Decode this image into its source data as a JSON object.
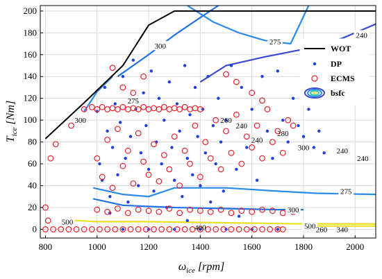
{
  "chart_data": {
    "type": "scatter",
    "xlim": [
      780,
      2080
    ],
    "ylim": [
      -8,
      205
    ],
    "x_ticks": [
      800,
      1000,
      1200,
      1400,
      1600,
      1800,
      2000
    ],
    "y_ticks": [
      0,
      20,
      40,
      60,
      80,
      100,
      120,
      140,
      160,
      180,
      200
    ],
    "xlabel_main": "ω",
    "xlabel_sub": "ice",
    "xlabel_unit": " [rpm]",
    "ylabel_main": "T",
    "ylabel_sub": "ice",
    "ylabel_unit": " [Nm]",
    "grid": true,
    "legend_position": "upper-right",
    "legend": [
      {
        "name": "WOT",
        "style": "line",
        "color": "#000000"
      },
      {
        "name": "DP",
        "style": "dot",
        "color": "#1f3fe0"
      },
      {
        "name": "ECMS",
        "style": "circle",
        "color": "#e8202a"
      },
      {
        "name": "bsfc",
        "style": "contour",
        "color": "#3a4ad0"
      }
    ],
    "series": [
      {
        "name": "WOT",
        "type": "line",
        "color": "#000000",
        "points": [
          [
            800,
            83
          ],
          [
            950,
            116
          ],
          [
            1100,
            150
          ],
          [
            1200,
            187
          ],
          [
            1300,
            200
          ],
          [
            2080,
            200
          ]
        ]
      },
      {
        "name": "DP",
        "type": "scatter",
        "color": "#1f3fe0",
        "points": [
          [
            1000,
            108
          ],
          [
            1010,
            60
          ],
          [
            1020,
            45
          ],
          [
            1030,
            130
          ],
          [
            1040,
            90
          ],
          [
            1050,
            30
          ],
          [
            1060,
            75
          ],
          [
            1070,
            115
          ],
          [
            1080,
            50
          ],
          [
            1090,
            98
          ],
          [
            1100,
            140
          ],
          [
            1110,
            65
          ],
          [
            1120,
            25
          ],
          [
            1130,
            85
          ],
          [
            1140,
            155
          ],
          [
            1150,
            110
          ],
          [
            1160,
            40
          ],
          [
            1170,
            70
          ],
          [
            1180,
            125
          ],
          [
            1190,
            95
          ],
          [
            1200,
            55
          ],
          [
            1210,
            145
          ],
          [
            1220,
            35
          ],
          [
            1230,
            80
          ],
          [
            1240,
            120
          ],
          [
            1250,
            60
          ],
          [
            1260,
            100
          ],
          [
            1270,
            20
          ],
          [
            1280,
            135
          ],
          [
            1290,
            75
          ],
          [
            1300,
            45
          ],
          [
            1310,
            115
          ],
          [
            1320,
            90
          ],
          [
            1330,
            30
          ],
          [
            1340,
            150
          ],
          [
            1350,
            65
          ],
          [
            1360,
            105
          ],
          [
            1370,
            50
          ],
          [
            1380,
            130
          ],
          [
            1390,
            85
          ],
          [
            1400,
            40
          ],
          [
            1410,
            110
          ],
          [
            1420,
            70
          ],
          [
            1430,
            140
          ],
          [
            1440,
            25
          ],
          [
            1450,
            95
          ],
          [
            1460,
            60
          ],
          [
            1470,
            120
          ],
          [
            1480,
            80
          ],
          [
            1490,
            35
          ],
          [
            1500,
            100
          ],
          [
            1520,
            150
          ],
          [
            1540,
            55
          ],
          [
            1560,
            130
          ],
          [
            1580,
            75
          ],
          [
            1600,
            110
          ],
          [
            1620,
            45
          ],
          [
            1640,
            140
          ],
          [
            1660,
            90
          ],
          [
            1680,
            65
          ],
          [
            1700,
            145
          ],
          [
            1720,
            100
          ],
          [
            1740,
            80
          ],
          [
            1760,
            120
          ],
          [
            1780,
            95
          ],
          [
            1800,
            85
          ],
          [
            1820,
            110
          ],
          [
            1840,
            75
          ],
          [
            1860,
            90
          ],
          [
            1880,
            70
          ],
          [
            1100,
            0
          ],
          [
            1200,
            0
          ],
          [
            1300,
            0
          ],
          [
            1400,
            0
          ],
          [
            1500,
            0
          ],
          [
            1600,
            0
          ],
          [
            1700,
            0
          ],
          [
            1050,
            15
          ],
          [
            1350,
            8
          ],
          [
            1550,
            12
          ]
        ]
      },
      {
        "name": "ECMS",
        "type": "scatter",
        "color": "#e8202a",
        "points": [
          [
            800,
            20
          ],
          [
            810,
            8
          ],
          [
            820,
            65
          ],
          [
            840,
            78
          ],
          [
            900,
            95
          ],
          [
            950,
            110
          ],
          [
            980,
            112
          ],
          [
            1000,
            110
          ],
          [
            1020,
            112
          ],
          [
            1040,
            110
          ],
          [
            1060,
            111
          ],
          [
            1080,
            110
          ],
          [
            1100,
            112
          ],
          [
            1120,
            110
          ],
          [
            1140,
            111
          ],
          [
            1160,
            110
          ],
          [
            1180,
            112
          ],
          [
            1200,
            110
          ],
          [
            1220,
            111
          ],
          [
            1240,
            110
          ],
          [
            1260,
            112
          ],
          [
            1280,
            110
          ],
          [
            1300,
            111
          ],
          [
            1320,
            110
          ],
          [
            1340,
            112
          ],
          [
            1360,
            110
          ],
          [
            1380,
            111
          ],
          [
            1400,
            110
          ],
          [
            1000,
            65
          ],
          [
            1020,
            48
          ],
          [
            1040,
            82
          ],
          [
            1060,
            38
          ],
          [
            1080,
            92
          ],
          [
            1100,
            58
          ],
          [
            1120,
            72
          ],
          [
            1140,
            42
          ],
          [
            1160,
            88
          ],
          [
            1180,
            62
          ],
          [
            1200,
            50
          ],
          [
            1220,
            78
          ],
          [
            1240,
            44
          ],
          [
            1260,
            68
          ],
          [
            1280,
            55
          ],
          [
            1300,
            85
          ],
          [
            1320,
            40
          ],
          [
            1340,
            72
          ],
          [
            1360,
            60
          ],
          [
            1380,
            95
          ],
          [
            1400,
            48
          ],
          [
            1420,
            80
          ],
          [
            1440,
            65
          ],
          [
            1460,
            100
          ],
          [
            1480,
            55
          ],
          [
            1500,
            90
          ],
          [
            1520,
            70
          ],
          [
            1540,
            105
          ],
          [
            1560,
            60
          ],
          [
            1580,
            85
          ],
          [
            1600,
            75
          ],
          [
            1620,
            95
          ],
          [
            1640,
            65
          ],
          [
            1660,
            110
          ],
          [
            1680,
            80
          ],
          [
            1700,
            90
          ],
          [
            1720,
            70
          ],
          [
            1740,
            100
          ],
          [
            1760,
            95
          ],
          [
            1000,
            18
          ],
          [
            1040,
            16
          ],
          [
            1080,
            19
          ],
          [
            1120,
            15
          ],
          [
            1160,
            18
          ],
          [
            1200,
            17
          ],
          [
            1240,
            16
          ],
          [
            1280,
            19
          ],
          [
            1320,
            15
          ],
          [
            1360,
            18
          ],
          [
            1400,
            17
          ],
          [
            1440,
            16
          ],
          [
            1480,
            18
          ],
          [
            1520,
            15
          ],
          [
            1560,
            17
          ],
          [
            1600,
            16
          ],
          [
            1640,
            18
          ],
          [
            1680,
            17
          ],
          [
            1720,
            15
          ],
          [
            1760,
            16
          ],
          [
            800,
            0
          ],
          [
            830,
            0
          ],
          [
            860,
            0
          ],
          [
            890,
            0
          ],
          [
            920,
            0
          ],
          [
            950,
            0
          ],
          [
            980,
            0
          ],
          [
            1010,
            0
          ],
          [
            1040,
            0
          ],
          [
            1070,
            0
          ],
          [
            1100,
            0
          ],
          [
            1130,
            0
          ],
          [
            1160,
            0
          ],
          [
            1190,
            0
          ],
          [
            1220,
            0
          ],
          [
            1250,
            0
          ],
          [
            1280,
            0
          ],
          [
            1310,
            0
          ],
          [
            1340,
            0
          ],
          [
            1370,
            0
          ],
          [
            1400,
            0
          ],
          [
            1430,
            0
          ],
          [
            1460,
            0
          ],
          [
            1490,
            0
          ],
          [
            1520,
            0
          ],
          [
            1550,
            0
          ],
          [
            1580,
            0
          ],
          [
            1610,
            0
          ],
          [
            1640,
            0
          ],
          [
            1670,
            0
          ],
          [
            1700,
            0
          ],
          [
            1720,
            0
          ],
          [
            1060,
            148
          ],
          [
            1100,
            130
          ],
          [
            1140,
            125
          ],
          [
            1180,
            140
          ],
          [
            1500,
            142
          ],
          [
            1540,
            135
          ],
          [
            1600,
            125
          ],
          [
            1640,
            118
          ]
        ]
      }
    ],
    "contours": [
      {
        "label": "300",
        "color": "#1f73e8",
        "points": [
          [
            1080,
            140
          ],
          [
            1200,
            160
          ],
          [
            1300,
            178
          ],
          [
            1400,
            194
          ],
          [
            1470,
            205
          ]
        ],
        "label_at": [
          1245,
          168
        ]
      },
      {
        "label": "275",
        "color": "#2b8be8",
        "points": [
          [
            1350,
            205
          ],
          [
            1450,
            190
          ],
          [
            1550,
            180
          ],
          [
            1650,
            173
          ],
          [
            1750,
            170
          ],
          [
            1820,
            205
          ]
        ],
        "label_at": [
          1690,
          172
        ]
      },
      {
        "label": "240",
        "color": "#3a4ad0",
        "points": [
          [
            1400,
            135
          ],
          [
            1500,
            150
          ],
          [
            1650,
            158
          ],
          [
            1800,
            165
          ],
          [
            1950,
            175
          ],
          [
            2080,
            188
          ]
        ],
        "label_at": [
          2025,
          178
        ]
      },
      {
        "label": "275",
        "color": "#2b8be8",
        "points": [
          [
            985,
            38
          ],
          [
            1100,
            32
          ],
          [
            1200,
            30
          ],
          [
            1300,
            38
          ],
          [
            1500,
            38
          ],
          [
            1700,
            35
          ],
          [
            1850,
            33
          ],
          [
            2080,
            32
          ]
        ],
        "label_at": [
          1965,
          35
        ]
      },
      {
        "label": "300",
        "color": "#1f73e8",
        "points": [
          [
            985,
            28
          ],
          [
            1100,
            22
          ],
          [
            1300,
            20
          ],
          [
            1500,
            19
          ],
          [
            1700,
            18
          ],
          [
            1800,
            18
          ]
        ],
        "label_at": [
          1760,
          18
        ]
      },
      {
        "label": "500",
        "color": "#e8e020",
        "points": [
          [
            870,
            5
          ],
          [
            920,
            8
          ],
          [
            1000,
            7
          ],
          [
            1200,
            7
          ],
          [
            1500,
            6
          ],
          [
            1800,
            5
          ],
          [
            2080,
            5
          ]
        ],
        "label_at": [
          885,
          7
        ]
      },
      {
        "label": "500",
        "color": "#e8e020",
        "points": [
          [
            1800,
            3
          ],
          [
            2080,
            3
          ]
        ],
        "label_at": [
          1825,
          3
        ]
      },
      {
        "label": "",
        "color": "#2b8be8",
        "points": [
          [
            950,
            108
          ],
          [
            1000,
            126
          ],
          [
            1060,
            140
          ]
        ],
        "label_at": null
      }
    ],
    "contour_extra_labels": [
      {
        "text": "275",
        "at": [
          1140,
          118
        ]
      },
      {
        "text": "300",
        "at": [
          935,
          100
        ]
      },
      {
        "text": "240",
        "at": [
          1560,
          95
        ]
      },
      {
        "text": "240",
        "at": [
          1620,
          82
        ]
      },
      {
        "text": "240",
        "at": [
          1950,
          72
        ]
      },
      {
        "text": "240",
        "at": [
          2030,
          65
        ]
      },
      {
        "text": "260",
        "at": [
          1500,
          100
        ]
      },
      {
        "text": "280",
        "at": [
          1720,
          88
        ]
      },
      {
        "text": "300",
        "at": [
          1800,
          75
        ]
      },
      {
        "text": "400",
        "at": [
          1400,
          2
        ]
      },
      {
        "text": "260",
        "at": [
          1870,
          0
        ]
      },
      {
        "text": "340",
        "at": [
          1950,
          0
        ]
      }
    ]
  }
}
